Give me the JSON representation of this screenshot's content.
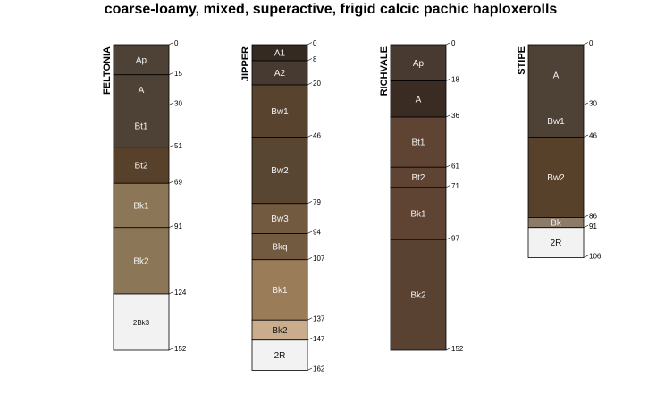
{
  "title": "coarse-loamy, mixed, superactive, frigid calcic pachic haploxerolls",
  "profiles": [
    {
      "name": "FELTONIA",
      "bottom_depth": 152,
      "horizons": [
        {
          "name": "Ap",
          "top": 0,
          "bottom": 15,
          "color": "#4e4136"
        },
        {
          "name": "A",
          "top": 15,
          "bottom": 30,
          "color": "#4e4136"
        },
        {
          "name": "Bt1",
          "top": 30,
          "bottom": 51,
          "color": "#4e4136"
        },
        {
          "name": "Bt2",
          "top": 51,
          "bottom": 69,
          "color": "#58412b"
        },
        {
          "name": "Bk1",
          "top": 69,
          "bottom": 91,
          "color": "#8b7757"
        },
        {
          "name": "Bk2",
          "top": 91,
          "bottom": 124,
          "color": "#8b7757"
        },
        {
          "name": "2Bk3",
          "top": 124,
          "bottom": 152,
          "color": "#f2f2f2"
        }
      ]
    },
    {
      "name": "JIPPER",
      "bottom_depth": 162,
      "horizons": [
        {
          "name": "A1",
          "top": 0,
          "bottom": 8,
          "color": "#342a22"
        },
        {
          "name": "A2",
          "top": 8,
          "bottom": 20,
          "color": "#473a30"
        },
        {
          "name": "Bw1",
          "top": 20,
          "bottom": 46,
          "color": "#58432e"
        },
        {
          "name": "Bw2",
          "top": 46,
          "bottom": 79,
          "color": "#584632"
        },
        {
          "name": "Bw3",
          "top": 79,
          "bottom": 94,
          "color": "#715a3f"
        },
        {
          "name": "Bkq",
          "top": 94,
          "bottom": 107,
          "color": "#715a3f"
        },
        {
          "name": "Bk1",
          "top": 107,
          "bottom": 137,
          "color": "#9a7d58"
        },
        {
          "name": "Bk2",
          "top": 137,
          "bottom": 147,
          "color": "#c9ad8c"
        },
        {
          "name": "2R",
          "top": 147,
          "bottom": 162,
          "color": "#f2f2f2"
        }
      ]
    },
    {
      "name": "RICHVALE",
      "bottom_depth": 152,
      "horizons": [
        {
          "name": "Ap",
          "top": 0,
          "bottom": 18,
          "color": "#483a30"
        },
        {
          "name": "A",
          "top": 18,
          "bottom": 36,
          "color": "#3b2c23"
        },
        {
          "name": "Bt1",
          "top": 36,
          "bottom": 61,
          "color": "#5f4333"
        },
        {
          "name": "Bt2",
          "top": 61,
          "bottom": 71,
          "color": "#5f4333"
        },
        {
          "name": "Bk1",
          "top": 71,
          "bottom": 97,
          "color": "#5f4333"
        },
        {
          "name": "Bk2",
          "top": 97,
          "bottom": 152,
          "color": "#5a4233"
        }
      ]
    },
    {
      "name": "STIPE",
      "bottom_depth": 106,
      "horizons": [
        {
          "name": "A",
          "top": 0,
          "bottom": 30,
          "color": "#4e4136"
        },
        {
          "name": "Bw1",
          "top": 30,
          "bottom": 46,
          "color": "#4e4136"
        },
        {
          "name": "Bw2",
          "top": 46,
          "bottom": 86,
          "color": "#58412b"
        },
        {
          "name": "Bk",
          "top": 86,
          "bottom": 91,
          "color": "#8c7b69"
        },
        {
          "name": "2R",
          "top": 91,
          "bottom": 106,
          "color": "#f2f2f2"
        }
      ]
    }
  ]
}
